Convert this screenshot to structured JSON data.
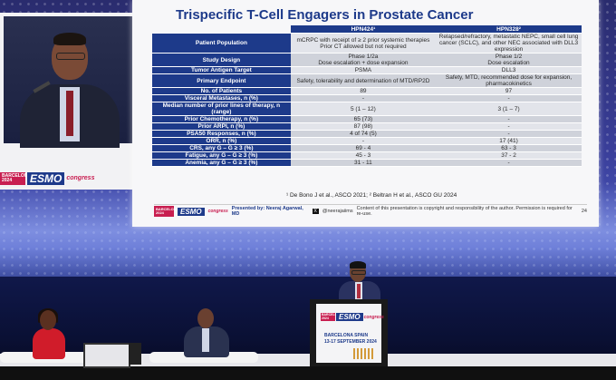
{
  "slide": {
    "title": "Trispecific T-Cell Engagers in Prostate Cancer",
    "columns": [
      "",
      "HPN424¹",
      "HPN328²"
    ],
    "rows": [
      {
        "label": "Patient Population",
        "a": "mCRPC with receipt of ≥ 2 prior systemic therapies\nPrior CT allowed but not required",
        "b": "Relapsed/refractory, metastatic NEPC, small cell lung cancer (SCLC), and other NEC associated with DLL3 expression"
      },
      {
        "label": "Study Design",
        "a": "Phase 1/2a\nDose escalation + dose expansion",
        "b": "Phase 1/2\nDose escalation"
      },
      {
        "label": "Tumor Antigen Target",
        "a": "PSMA",
        "b": "DLL3"
      },
      {
        "label": "Primary Endpoint",
        "a": "Safety, tolerability and determination of MTD/RP2D",
        "b": "Safety, MTD, recommended dose for expansion, pharmacokinetics"
      },
      {
        "label": "No. of Patients",
        "a": "89",
        "b": "97"
      },
      {
        "label": "Visceral Metastases, n (%)",
        "a": "-",
        "b": "-"
      },
      {
        "label": "Median number of prior lines of therapy, n (range)",
        "a": "5 (1 – 12)",
        "b": "3 (1 – 7)"
      },
      {
        "label": "Prior Chemotherapy, n (%)",
        "a": "65 (73)",
        "b": "-"
      },
      {
        "label": "Prior ARPI, n (%)",
        "a": "87 (98)",
        "b": "-"
      },
      {
        "label": "PSA50 Responses, n (%)",
        "a": "4 of 74 (5)",
        "b": "-"
      },
      {
        "label": "ORR, n (%)",
        "a": "-",
        "b": "17 (41)"
      },
      {
        "label": "CRS, any G – G ≥ 3 (%)",
        "a": "69 - 4",
        "b": "63 - 3"
      },
      {
        "label": "Fatigue, any G – G ≥ 3 (%)",
        "a": "45 - 3",
        "b": "37 - 2"
      },
      {
        "label": "Anemia, any G – G ≥ 3 (%)",
        "a": "31 - 11",
        "b": "-"
      }
    ],
    "references": "¹ De Bono J et al., ASCO 2021; ² Beltran H et al., ASCO GU 2024",
    "presented_by": "Presented by: Neeraj Agarwal, MD",
    "handle": "@neerajaiims",
    "disclaimer": "Content of this presentation is copyright and responsibility of the author. Permission is required for re-use.",
    "page_number": "24"
  },
  "branding": {
    "barcelona": "BARCELONA 2024",
    "esmo": "ESMO",
    "congress": "congress"
  },
  "podium": {
    "city": "BARCELONA SPAIN",
    "dates": "13-17 SEPTEMBER 2024"
  }
}
